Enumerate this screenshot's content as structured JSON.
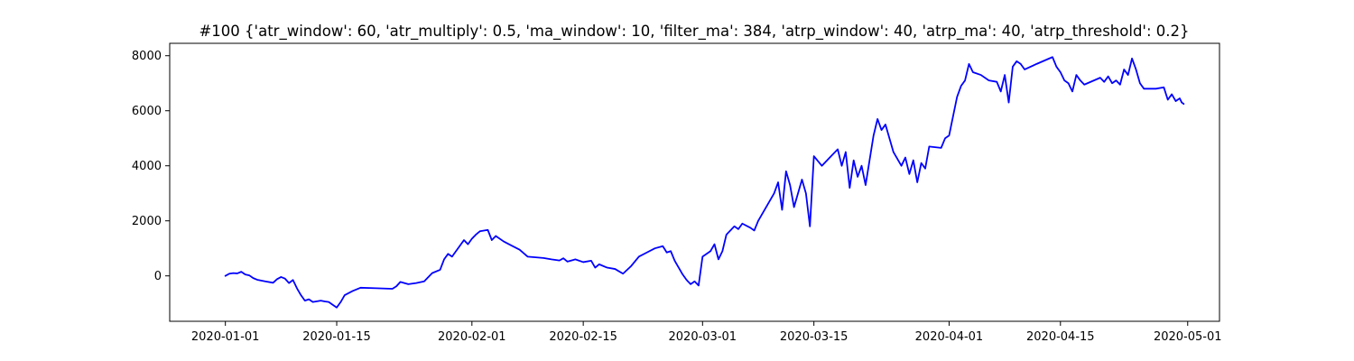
{
  "chart_data": {
    "type": "line",
    "title": "#100 {'atr_window': 60, 'atr_multiply': 0.5, 'ma_window': 10, 'filter_ma': 384, 'atrp_window': 40, 'atrp_ma': 40, 'atrp_threshold': 0.2}",
    "xlabel": "",
    "ylabel": "",
    "grid": false,
    "legend": "none",
    "xlim": [
      "2019-12-25",
      "2020-05-05"
    ],
    "ylim": [
      -1650,
      8450
    ],
    "xticks": [
      {
        "date": "2020-01-01",
        "label": "2020-01-01"
      },
      {
        "date": "2020-01-15",
        "label": "2020-01-15"
      },
      {
        "date": "2020-02-01",
        "label": "2020-02-01"
      },
      {
        "date": "2020-02-15",
        "label": "2020-02-15"
      },
      {
        "date": "2020-03-01",
        "label": "2020-03-01"
      },
      {
        "date": "2020-03-15",
        "label": "2020-03-15"
      },
      {
        "date": "2020-04-01",
        "label": "2020-04-01"
      },
      {
        "date": "2020-04-15",
        "label": "2020-04-15"
      },
      {
        "date": "2020-05-01",
        "label": "2020-05-01"
      }
    ],
    "yticks": [
      {
        "value": 0,
        "label": "0"
      },
      {
        "value": 2000,
        "label": "2000"
      },
      {
        "value": 4000,
        "label": "4000"
      },
      {
        "value": 6000,
        "label": "6000"
      },
      {
        "value": 8000,
        "label": "8000"
      }
    ],
    "series": [
      {
        "color": "#0000ff",
        "points": [
          [
            "2020-01-01",
            0
          ],
          [
            "2020-01-01 12:00",
            80
          ],
          [
            "2020-01-02",
            100
          ],
          [
            "2020-01-02 12:00",
            90
          ],
          [
            "2020-01-03",
            150
          ],
          [
            "2020-01-03 12:00",
            50
          ],
          [
            "2020-01-04",
            20
          ],
          [
            "2020-01-04 12:00",
            -80
          ],
          [
            "2020-01-05",
            -140
          ],
          [
            "2020-01-06",
            -200
          ],
          [
            "2020-01-07",
            -250
          ],
          [
            "2020-01-07 12:00",
            -120
          ],
          [
            "2020-01-08",
            -40
          ],
          [
            "2020-01-08 12:00",
            -100
          ],
          [
            "2020-01-09",
            -260
          ],
          [
            "2020-01-09 12:00",
            -150
          ],
          [
            "2020-01-10",
            -450
          ],
          [
            "2020-01-10 12:00",
            -700
          ],
          [
            "2020-01-11",
            -900
          ],
          [
            "2020-01-11 12:00",
            -850
          ],
          [
            "2020-01-12",
            -950
          ],
          [
            "2020-01-13",
            -900
          ],
          [
            "2020-01-13 12:00",
            -930
          ],
          [
            "2020-01-14",
            -950
          ],
          [
            "2020-01-14 12:00",
            -1050
          ],
          [
            "2020-01-15",
            -1150
          ],
          [
            "2020-01-15 12:00",
            -950
          ],
          [
            "2020-01-16",
            -700
          ],
          [
            "2020-01-17",
            -550
          ],
          [
            "2020-01-18",
            -430
          ],
          [
            "2020-01-20",
            -450
          ],
          [
            "2020-01-22",
            -470
          ],
          [
            "2020-01-22 12:00",
            -380
          ],
          [
            "2020-01-23",
            -220
          ],
          [
            "2020-01-24",
            -300
          ],
          [
            "2020-01-25",
            -260
          ],
          [
            "2020-01-26",
            -200
          ],
          [
            "2020-01-27",
            100
          ],
          [
            "2020-01-28",
            220
          ],
          [
            "2020-01-28 12:00",
            600
          ],
          [
            "2020-01-29",
            800
          ],
          [
            "2020-01-29 12:00",
            700
          ],
          [
            "2020-01-30",
            900
          ],
          [
            "2020-01-30 12:00",
            1100
          ],
          [
            "2020-01-31",
            1300
          ],
          [
            "2020-01-31 12:00",
            1150
          ],
          [
            "2020-02-01",
            1350
          ],
          [
            "2020-02-01 12:00",
            1500
          ],
          [
            "2020-02-02",
            1620
          ],
          [
            "2020-02-03",
            1670
          ],
          [
            "2020-02-03 12:00",
            1300
          ],
          [
            "2020-02-04",
            1450
          ],
          [
            "2020-02-05",
            1250
          ],
          [
            "2020-02-06",
            1100
          ],
          [
            "2020-02-07",
            950
          ],
          [
            "2020-02-08",
            700
          ],
          [
            "2020-02-10",
            650
          ],
          [
            "2020-02-11",
            600
          ],
          [
            "2020-02-12",
            560
          ],
          [
            "2020-02-12 12:00",
            640
          ],
          [
            "2020-02-13",
            520
          ],
          [
            "2020-02-14",
            600
          ],
          [
            "2020-02-15",
            500
          ],
          [
            "2020-02-16",
            550
          ],
          [
            "2020-02-16 12:00",
            300
          ],
          [
            "2020-02-17",
            420
          ],
          [
            "2020-02-18",
            300
          ],
          [
            "2020-02-19",
            250
          ],
          [
            "2020-02-20",
            80
          ],
          [
            "2020-02-21",
            350
          ],
          [
            "2020-02-22",
            700
          ],
          [
            "2020-02-23",
            850
          ],
          [
            "2020-02-24",
            1000
          ],
          [
            "2020-02-25",
            1080
          ],
          [
            "2020-02-25 12:00",
            850
          ],
          [
            "2020-02-26",
            900
          ],
          [
            "2020-02-26 12:00",
            550
          ],
          [
            "2020-02-27",
            300
          ],
          [
            "2020-02-27 12:00",
            50
          ],
          [
            "2020-02-28",
            -150
          ],
          [
            "2020-02-28 12:00",
            -300
          ],
          [
            "2020-02-29",
            -200
          ],
          [
            "2020-02-29 12:00",
            -350
          ],
          [
            "2020-03-01",
            700
          ],
          [
            "2020-03-02",
            900
          ],
          [
            "2020-03-02 12:00",
            1150
          ],
          [
            "2020-03-03",
            600
          ],
          [
            "2020-03-03 12:00",
            900
          ],
          [
            "2020-03-04",
            1500
          ],
          [
            "2020-03-05",
            1800
          ],
          [
            "2020-03-05 12:00",
            1700
          ],
          [
            "2020-03-06",
            1900
          ],
          [
            "2020-03-07",
            1750
          ],
          [
            "2020-03-07 12:00",
            1650
          ],
          [
            "2020-03-08",
            2000
          ],
          [
            "2020-03-09",
            2500
          ],
          [
            "2020-03-10",
            3000
          ],
          [
            "2020-03-10 12:00",
            3400
          ],
          [
            "2020-03-11",
            2400
          ],
          [
            "2020-03-11 12:00",
            3800
          ],
          [
            "2020-03-12",
            3300
          ],
          [
            "2020-03-12 12:00",
            2500
          ],
          [
            "2020-03-13",
            3000
          ],
          [
            "2020-03-13 12:00",
            3500
          ],
          [
            "2020-03-14",
            3000
          ],
          [
            "2020-03-14 12:00",
            1800
          ],
          [
            "2020-03-15",
            4350
          ],
          [
            "2020-03-16",
            4000
          ],
          [
            "2020-03-17",
            4300
          ],
          [
            "2020-03-18",
            4600
          ],
          [
            "2020-03-18 12:00",
            4000
          ],
          [
            "2020-03-19",
            4500
          ],
          [
            "2020-03-19 12:00",
            3200
          ],
          [
            "2020-03-20",
            4200
          ],
          [
            "2020-03-20 12:00",
            3600
          ],
          [
            "2020-03-21",
            4000
          ],
          [
            "2020-03-21 12:00",
            3300
          ],
          [
            "2020-03-22",
            4200
          ],
          [
            "2020-03-22 12:00",
            5100
          ],
          [
            "2020-03-23",
            5700
          ],
          [
            "2020-03-23 12:00",
            5300
          ],
          [
            "2020-03-24",
            5500
          ],
          [
            "2020-03-25",
            4500
          ],
          [
            "2020-03-26",
            4000
          ],
          [
            "2020-03-26 12:00",
            4300
          ],
          [
            "2020-03-27",
            3700
          ],
          [
            "2020-03-27 12:00",
            4200
          ],
          [
            "2020-03-28",
            3400
          ],
          [
            "2020-03-28 12:00",
            4100
          ],
          [
            "2020-03-29",
            3900
          ],
          [
            "2020-03-29 12:00",
            4700
          ],
          [
            "2020-03-31",
            4650
          ],
          [
            "2020-03-31 12:00",
            5000
          ],
          [
            "2020-04-01",
            5100
          ],
          [
            "2020-04-01 12:00",
            5800
          ],
          [
            "2020-04-02",
            6500
          ],
          [
            "2020-04-02 12:00",
            6900
          ],
          [
            "2020-04-03",
            7100
          ],
          [
            "2020-04-03 12:00",
            7700
          ],
          [
            "2020-04-04",
            7400
          ],
          [
            "2020-04-05",
            7300
          ],
          [
            "2020-04-06",
            7100
          ],
          [
            "2020-04-07",
            7050
          ],
          [
            "2020-04-07 12:00",
            6700
          ],
          [
            "2020-04-08",
            7300
          ],
          [
            "2020-04-08 12:00",
            6300
          ],
          [
            "2020-04-09",
            7600
          ],
          [
            "2020-04-09 12:00",
            7800
          ],
          [
            "2020-04-10",
            7700
          ],
          [
            "2020-04-10 12:00",
            7500
          ],
          [
            "2020-04-12",
            7700
          ],
          [
            "2020-04-14",
            7950
          ],
          [
            "2020-04-14 12:00",
            7600
          ],
          [
            "2020-04-15",
            7400
          ],
          [
            "2020-04-15 12:00",
            7100
          ],
          [
            "2020-04-16",
            7000
          ],
          [
            "2020-04-16 12:00",
            6700
          ],
          [
            "2020-04-17",
            7300
          ],
          [
            "2020-04-17 12:00",
            7100
          ],
          [
            "2020-04-18",
            6950
          ],
          [
            "2020-04-20",
            7200
          ],
          [
            "2020-04-20 12:00",
            7050
          ],
          [
            "2020-04-21",
            7250
          ],
          [
            "2020-04-21 12:00",
            7000
          ],
          [
            "2020-04-22",
            7100
          ],
          [
            "2020-04-22 12:00",
            6950
          ],
          [
            "2020-04-23",
            7500
          ],
          [
            "2020-04-23 12:00",
            7300
          ],
          [
            "2020-04-24",
            7900
          ],
          [
            "2020-04-24 12:00",
            7500
          ],
          [
            "2020-04-25",
            7000
          ],
          [
            "2020-04-25 12:00",
            6800
          ],
          [
            "2020-04-27",
            6800
          ],
          [
            "2020-04-28",
            6850
          ],
          [
            "2020-04-28 12:00",
            6400
          ],
          [
            "2020-04-29",
            6600
          ],
          [
            "2020-04-29 12:00",
            6350
          ],
          [
            "2020-04-30",
            6450
          ],
          [
            "2020-04-30 06:00",
            6300
          ],
          [
            "2020-04-30 12:00",
            6250
          ]
        ]
      }
    ]
  }
}
